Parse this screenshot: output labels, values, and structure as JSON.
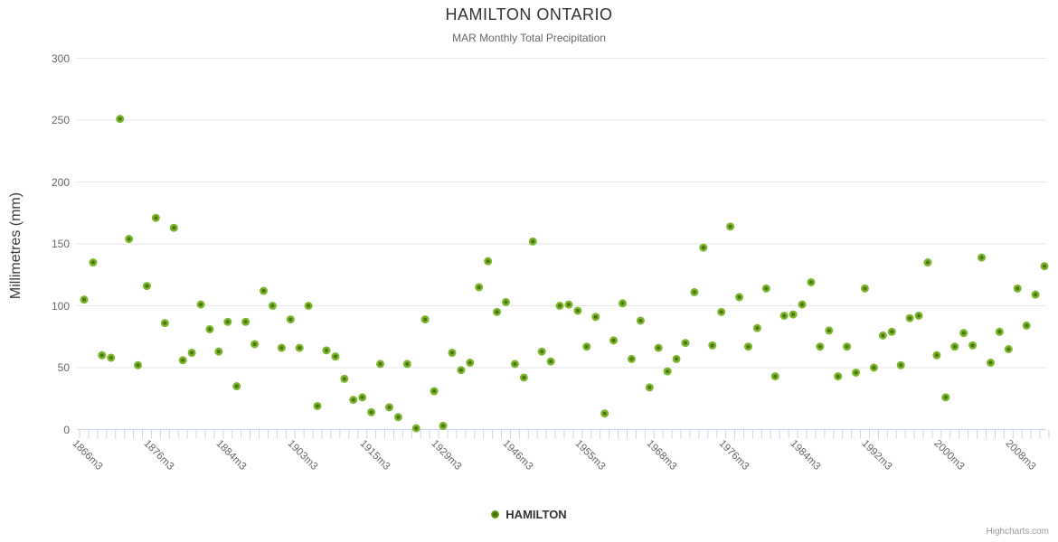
{
  "header": {
    "title": "HAMILTON ONTARIO",
    "subtitle": "MAR Monthly Total Precipitation"
  },
  "legend": {
    "series_label": "HAMILTON"
  },
  "credits": {
    "text": "Highcharts.com"
  },
  "colors": {
    "marker_outer": "#7cb52b",
    "marker_inner": "#3f6b00",
    "grid": "#e6e6e6",
    "axis": "#ccd6eb",
    "label_text": "#666666",
    "title_text": "#333333"
  },
  "chart_data": {
    "type": "scatter",
    "title": "HAMILTON ONTARIO",
    "subtitle": "MAR Monthly Total Precipitation",
    "xlabel": "",
    "ylabel": "Millimetres (mm)",
    "ylim": [
      0,
      300
    ],
    "yticks": [
      0,
      50,
      100,
      150,
      200,
      250,
      300
    ],
    "grid": true,
    "legend_position": "bottom-center",
    "series_name": "HAMILTON",
    "x_tick_indices": [
      0,
      8,
      16,
      24,
      32,
      40,
      48,
      56,
      64,
      72,
      80,
      88,
      96,
      104
    ],
    "x_tick_labels": [
      "1866m3",
      "1876m3",
      "1884m3",
      "1903m3",
      "1915m3",
      "1929m3",
      "1946m3",
      "1955m3",
      "1968m3",
      "1976m3",
      "1984m3",
      "1992m3",
      "2000m3",
      "2008m3"
    ],
    "num_points": 108,
    "values": [
      105,
      135,
      60,
      58,
      251,
      154,
      52,
      116,
      171,
      86,
      163,
      56,
      62,
      101,
      81,
      63,
      87,
      35,
      87,
      69,
      112,
      100,
      66,
      89,
      66,
      100,
      19,
      64,
      59,
      41,
      24,
      26,
      14,
      53,
      18,
      10,
      53,
      1,
      89,
      31,
      3,
      62,
      48,
      54,
      115,
      136,
      95,
      103,
      53,
      42,
      152,
      63,
      55,
      100,
      101,
      96,
      67,
      91,
      13,
      72,
      102,
      57,
      88,
      34,
      66,
      47,
      57,
      70,
      111,
      147,
      68,
      95,
      164,
      107,
      67,
      82,
      114,
      43,
      92,
      93,
      101,
      119,
      67,
      80,
      43,
      67,
      46,
      114,
      50,
      76,
      79,
      52,
      90,
      92,
      135,
      60,
      26,
      67,
      78,
      68,
      139,
      54,
      79,
      65,
      114,
      84,
      109,
      132
    ]
  }
}
